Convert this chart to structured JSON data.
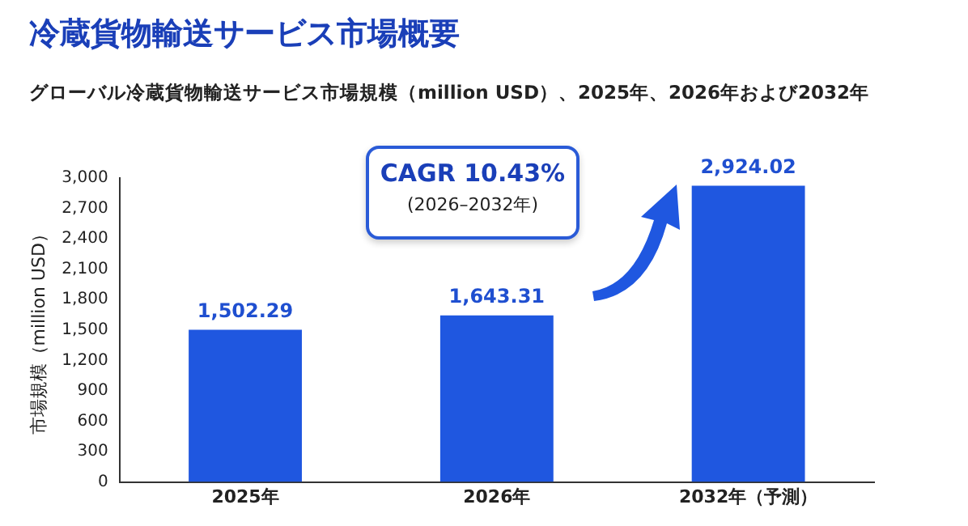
{
  "chart_data": {
    "type": "bar",
    "title": "冷蔵貨物輸送サービス市場概要",
    "subtitle": "グローバル冷蔵貨物輸送サービス市場規模（million USD）、2025年、2026年および2032年",
    "ylabel": "市場規模（million USD）",
    "categories": [
      "2025年",
      "2026年",
      "2032年（予測）"
    ],
    "values": [
      1502.29,
      1643.31,
      2924.02
    ],
    "value_labels": [
      "1,502.29",
      "1,643.31",
      "2,924.02"
    ],
    "color": "#1f57e0",
    "ylim": [
      0,
      3000
    ],
    "yticks": [
      0,
      300,
      600,
      900,
      {
        "value": 1200,
        "label": "1,200"
      },
      {
        "value": 1500,
        "label": "1,500"
      },
      {
        "value": 1800,
        "label": "1,800"
      },
      {
        "value": 2100,
        "label": "2,100"
      },
      {
        "value": 2400,
        "label": "2,400"
      },
      {
        "value": 2700,
        "label": "2,700"
      },
      {
        "value": 3000,
        "label": "3,000"
      }
    ],
    "grid": false,
    "legend": false,
    "annotations": [
      "CAGR 10.43%",
      "(2026–2032年)"
    ]
  }
}
